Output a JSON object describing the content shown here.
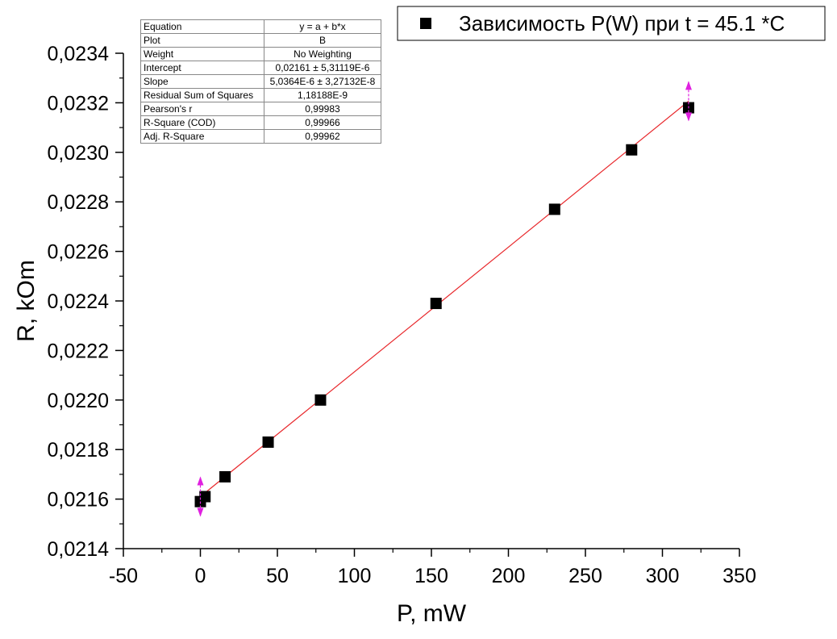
{
  "chart_data": {
    "type": "scatter",
    "xlabel": "P, mW",
    "ylabel": "R, kOm",
    "xlim": [
      -50,
      350
    ],
    "ylim": [
      0.0214,
      0.0234
    ],
    "x_ticks": [
      "-50",
      "0",
      "50",
      "100",
      "150",
      "200",
      "250",
      "300",
      "350"
    ],
    "x_tick_values": [
      -50,
      0,
      50,
      100,
      150,
      200,
      250,
      300,
      350
    ],
    "y_ticks": [
      "0,0214",
      "0,0216",
      "0,0218",
      "0,0220",
      "0,0222",
      "0,0224",
      "0,0226",
      "0,0228",
      "0,0230",
      "0,0232",
      "0,0234"
    ],
    "y_tick_values": [
      0.0214,
      0.0216,
      0.0218,
      0.022,
      0.0222,
      0.0224,
      0.0226,
      0.0228,
      0.023,
      0.0232,
      0.0234
    ],
    "series": [
      {
        "name": "Зависимость P(W) при t = 45.1 *C",
        "x": [
          0,
          3,
          16,
          44,
          78,
          153,
          230,
          280,
          317
        ],
        "y": [
          0.02159,
          0.02161,
          0.02169,
          0.02183,
          0.022,
          0.02239,
          0.02277,
          0.02301,
          0.02318
        ]
      }
    ],
    "fit_line": {
      "intercept": 0.02161,
      "slope": 5.0364e-06,
      "x_range": [
        0,
        317
      ]
    },
    "error_markers_x": [
      0,
      317
    ],
    "legend_position": "top-right",
    "grid": false,
    "colors": {
      "marker": "#000000",
      "fit_line": "#e8262a",
      "error_bar": "#e020e0"
    }
  },
  "stats_table": [
    {
      "key": "Equation",
      "value": "y = a + b*x"
    },
    {
      "key": "Plot",
      "value": "B"
    },
    {
      "key": "Weight",
      "value": "No Weighting"
    },
    {
      "key": "Intercept",
      "value": "0,02161 ± 5,31119E-6"
    },
    {
      "key": "Slope",
      "value": "5,0364E-6 ± 3,27132E-8"
    },
    {
      "key": "Residual Sum of Squares",
      "value": "1,18188E-9"
    },
    {
      "key": "Pearson's r",
      "value": "0,99983"
    },
    {
      "key": "R-Square (COD)",
      "value": "0,99966"
    },
    {
      "key": "Adj. R-Square",
      "value": "0,99962"
    }
  ]
}
